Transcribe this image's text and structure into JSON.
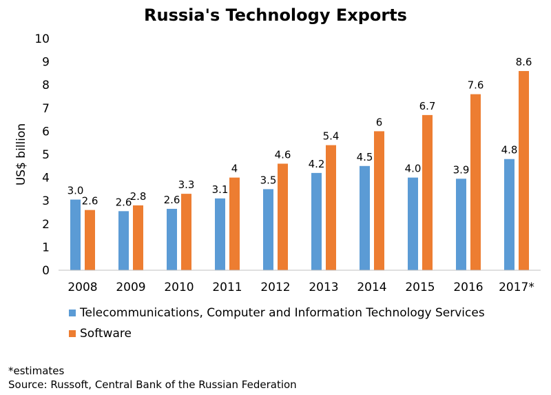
{
  "chart_data": {
    "type": "bar",
    "title": "Russia's Technology Exports",
    "ylabel": "US$ billion",
    "xlabel": "",
    "ylim": [
      0,
      10
    ],
    "yticks": [
      "0",
      "1",
      "2",
      "3",
      "4",
      "5",
      "6",
      "7",
      "8",
      "9",
      "10"
    ],
    "categories": [
      "2008",
      "2009",
      "2010",
      "2011",
      "2012",
      "2013",
      "2014",
      "2015",
      "2016",
      "2017*"
    ],
    "series": [
      {
        "name": "Telecommunications, Computer and Information Technology Services",
        "color": "#5B9BD5",
        "values": [
          3.05,
          2.55,
          2.65,
          3.1,
          3.5,
          4.2,
          4.5,
          4.0,
          3.95,
          4.8
        ],
        "labels": [
          "3.0",
          "2.6",
          "2.6",
          "3.1",
          "3.5",
          "4.2",
          "4.5",
          "4.0",
          "3.9",
          "4.8"
        ]
      },
      {
        "name": "Software",
        "color": "#ED7D31",
        "values": [
          2.6,
          2.8,
          3.3,
          4.0,
          4.6,
          5.4,
          6.0,
          6.7,
          7.6,
          8.6
        ],
        "labels": [
          "2.6",
          "2.8",
          "3.3",
          "4",
          "4.6",
          "5.4",
          "6",
          "6.7",
          "7.6",
          "8.6"
        ]
      }
    ],
    "grid": false,
    "legend_position": "bottom"
  },
  "footnote": {
    "line1": "*estimates",
    "line2": "Source: Russoft, Central Bank of the Russian Federation"
  }
}
